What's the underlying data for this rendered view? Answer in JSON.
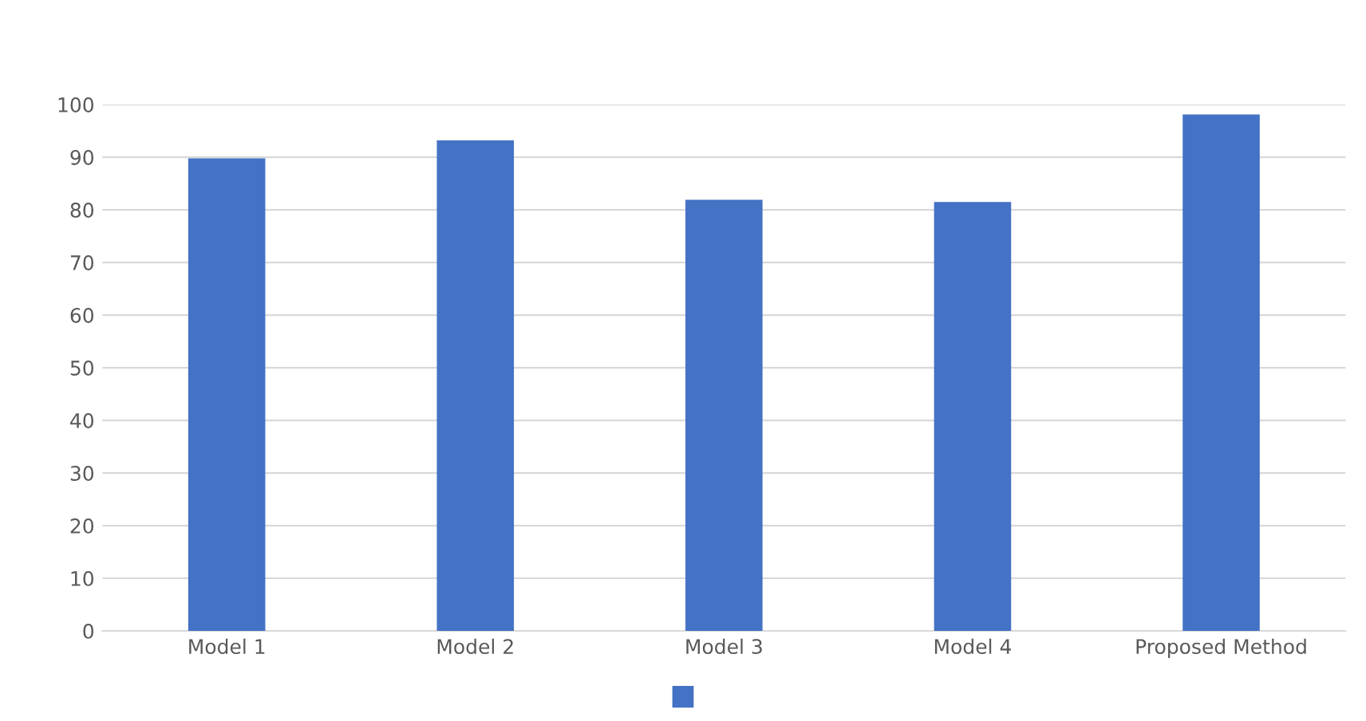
{
  "chart_data": {
    "type": "bar",
    "categories": [
      "Model 1",
      "Model 2",
      "Model 3",
      "Model 4",
      "Proposed Method"
    ],
    "series": [
      {
        "color": "#4472c4",
        "values": [
          89.8,
          93.2,
          81.9,
          81.5,
          98.1
        ]
      }
    ],
    "ylim": [
      0,
      100
    ],
    "yticks": [
      0,
      10,
      20,
      30,
      40,
      50,
      60,
      70,
      80,
      90,
      100
    ],
    "grid": "y"
  }
}
